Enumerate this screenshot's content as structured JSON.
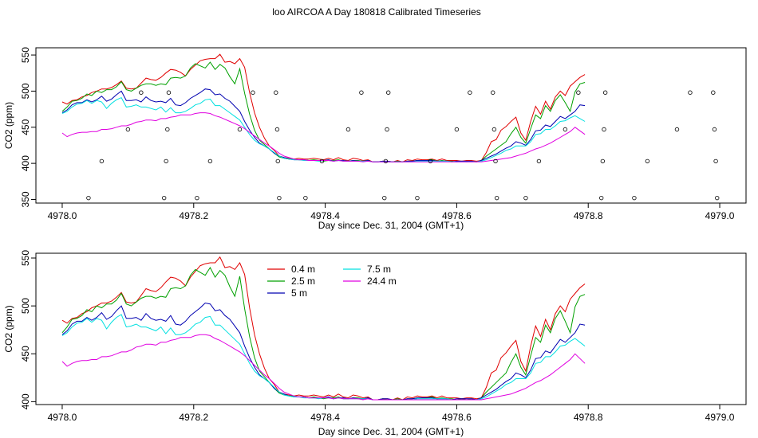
{
  "page_title": "loo AIRCOA A  Day 180818  Calibrated Timeseries",
  "chart_data": [
    {
      "type": "scatter",
      "xlabel": "Day since Dec. 31, 2004 (GMT+1)",
      "ylabel": "CO2 (ppm)",
      "xlim": [
        4977.96,
        4979.04
      ],
      "ylim": [
        345,
        560
      ],
      "xticks": [
        "4978.0",
        "4978.2",
        "4978.4",
        "4978.6",
        "4978.8",
        "4979.0"
      ],
      "yticks": [
        "350",
        "400",
        "450",
        "500",
        "550"
      ],
      "points": [
        [
          4978.04,
          352
        ],
        [
          4978.06,
          403
        ],
        [
          4978.1,
          447
        ],
        [
          4978.12,
          498
        ],
        [
          4978.155,
          352
        ],
        [
          4978.158,
          403
        ],
        [
          4978.16,
          447
        ],
        [
          4978.162,
          498
        ],
        [
          4978.205,
          352
        ],
        [
          4978.225,
          403
        ],
        [
          4978.27,
          447
        ],
        [
          4978.29,
          498
        ],
        [
          4978.325,
          498
        ],
        [
          4978.327,
          447
        ],
        [
          4978.328,
          403
        ],
        [
          4978.33,
          352
        ],
        [
          4978.37,
          352
        ],
        [
          4978.395,
          403
        ],
        [
          4978.435,
          447
        ],
        [
          4978.455,
          498
        ],
        [
          4978.49,
          352
        ],
        [
          4978.492,
          403
        ],
        [
          4978.494,
          447
        ],
        [
          4978.496,
          498
        ],
        [
          4978.54,
          352
        ],
        [
          4978.56,
          403
        ],
        [
          4978.6,
          447
        ],
        [
          4978.62,
          498
        ],
        [
          4978.655,
          498
        ],
        [
          4978.657,
          447
        ],
        [
          4978.659,
          403
        ],
        [
          4978.661,
          352
        ],
        [
          4978.705,
          352
        ],
        [
          4978.725,
          403
        ],
        [
          4978.765,
          447
        ],
        [
          4978.785,
          498
        ],
        [
          4978.82,
          352
        ],
        [
          4978.822,
          403
        ],
        [
          4978.824,
          447
        ],
        [
          4978.826,
          498
        ],
        [
          4978.87,
          352
        ],
        [
          4978.89,
          403
        ],
        [
          4978.935,
          447
        ],
        [
          4978.955,
          498
        ],
        [
          4978.99,
          498
        ],
        [
          4978.992,
          447
        ],
        [
          4978.994,
          403
        ],
        [
          4978.996,
          352
        ]
      ],
      "series": [
        {
          "name": "0.4 m",
          "color": "#e00000",
          "x_start": 4978.0,
          "x_step": 0.0075,
          "values": [
            485,
            482,
            487,
            488,
            492,
            494,
            498,
            500,
            503,
            503,
            505,
            509,
            514,
            504,
            503,
            504,
            511,
            518,
            516,
            515,
            519,
            525,
            530,
            529,
            526,
            521,
            530,
            536,
            542,
            544,
            545,
            545,
            551,
            540,
            541,
            538,
            545,
            533,
            498,
            470,
            450,
            435,
            424,
            418,
            410,
            408,
            407,
            406,
            407,
            406,
            406,
            407,
            406,
            405,
            407,
            405,
            408,
            405,
            404,
            407,
            406,
            404,
            405,
            402,
            402,
            403,
            403,
            402,
            404,
            402,
            405,
            404,
            406,
            405,
            405,
            406,
            404,
            406,
            404,
            404,
            404,
            403,
            404,
            404,
            403,
            404,
            415,
            430,
            433,
            446,
            451,
            458,
            464,
            442,
            432,
            458,
            479,
            468,
            486,
            475,
            492,
            500,
            494,
            507,
            513,
            519,
            523
          ]
        },
        {
          "name": "2.5 m",
          "color": "#00a000",
          "x_start": 4978.0,
          "x_step": 0.0075,
          "values": [
            472,
            478,
            486,
            487,
            490,
            496,
            494,
            500,
            498,
            502,
            502,
            506,
            513,
            502,
            500,
            504,
            508,
            510,
            510,
            508,
            510,
            509,
            518,
            519,
            518,
            521,
            532,
            538,
            535,
            532,
            540,
            530,
            537,
            532,
            520,
            510,
            531,
            497,
            468,
            446,
            432,
            426,
            420,
            414,
            409,
            407,
            406,
            406,
            405,
            405,
            404,
            405,
            404,
            403,
            404,
            404,
            405,
            403,
            403,
            404,
            404,
            403,
            404,
            402,
            402,
            403,
            402,
            402,
            403,
            402,
            403,
            403,
            404,
            404,
            404,
            405,
            403,
            404,
            403,
            403,
            402,
            403,
            402,
            403,
            402,
            404,
            410,
            415,
            420,
            425,
            430,
            441,
            450,
            436,
            428,
            448,
            467,
            462,
            480,
            472,
            487,
            495,
            484,
            472,
            499,
            510,
            512
          ]
        },
        {
          "name": "5 m",
          "color": "#0000b0",
          "x_start": 4978.0,
          "x_step": 0.0075,
          "values": [
            470,
            474,
            481,
            484,
            484,
            488,
            485,
            488,
            493,
            486,
            489,
            495,
            500,
            487,
            487,
            488,
            485,
            492,
            487,
            485,
            486,
            484,
            490,
            481,
            480,
            484,
            490,
            494,
            498,
            503,
            502,
            495,
            496,
            490,
            486,
            479,
            472,
            458,
            446,
            436,
            428,
            424,
            420,
            414,
            410,
            408,
            406,
            405,
            405,
            405,
            404,
            404,
            404,
            404,
            405,
            403,
            404,
            404,
            403,
            404,
            403,
            403,
            404,
            402,
            402,
            403,
            403,
            402,
            402,
            402,
            403,
            403,
            404,
            404,
            404,
            404,
            403,
            403,
            403,
            402,
            403,
            403,
            403,
            403,
            402,
            404,
            407,
            410,
            413,
            417,
            421,
            424,
            430,
            428,
            425,
            433,
            445,
            446,
            453,
            451,
            458,
            465,
            462,
            467,
            472,
            481,
            480
          ]
        },
        {
          "name": "7.5 m",
          "color": "#00e0e0",
          "x_start": 4978.0,
          "x_step": 0.0075,
          "values": [
            469,
            472,
            478,
            482,
            483,
            487,
            483,
            487,
            485,
            476,
            483,
            488,
            491,
            478,
            479,
            481,
            478,
            478,
            476,
            474,
            478,
            471,
            477,
            470,
            470,
            472,
            476,
            481,
            483,
            488,
            489,
            480,
            480,
            475,
            470,
            465,
            460,
            450,
            440,
            432,
            427,
            424,
            420,
            415,
            410,
            407,
            406,
            405,
            405,
            404,
            404,
            404,
            403,
            404,
            404,
            403,
            404,
            403,
            403,
            403,
            403,
            403,
            403,
            402,
            402,
            402,
            402,
            402,
            402,
            402,
            402,
            402,
            403,
            403,
            403,
            403,
            403,
            403,
            403,
            402,
            402,
            402,
            402,
            402,
            402,
            403,
            405,
            408,
            411,
            414,
            418,
            420,
            424,
            424,
            424,
            430,
            440,
            441,
            447,
            447,
            452,
            458,
            459,
            463,
            466,
            462,
            458
          ]
        },
        {
          "name": "24.4 m",
          "color": "#e000e0",
          "x_start": 4978.0,
          "x_step": 0.0075,
          "values": [
            442,
            437,
            440,
            442,
            443,
            443,
            444,
            444,
            447,
            447,
            448,
            450,
            452,
            452,
            454,
            457,
            458,
            460,
            460,
            459,
            462,
            462,
            464,
            465,
            467,
            467,
            467,
            469,
            470,
            470,
            469,
            466,
            464,
            461,
            458,
            455,
            452,
            448,
            443,
            438,
            433,
            428,
            424,
            419,
            414,
            410,
            408,
            406,
            405,
            405,
            404,
            404,
            404,
            404,
            404,
            403,
            404,
            403,
            403,
            403,
            403,
            402,
            403,
            402,
            402,
            402,
            402,
            402,
            402,
            402,
            402,
            402,
            402,
            402,
            402,
            402,
            402,
            402,
            402,
            402,
            402,
            402,
            402,
            402,
            402,
            402,
            403,
            404,
            405,
            406,
            407,
            408,
            410,
            412,
            414,
            417,
            420,
            422,
            425,
            428,
            432,
            436,
            440,
            444,
            450,
            445,
            440
          ]
        }
      ]
    },
    {
      "type": "line",
      "xlabel": "Day since Dec. 31, 2004 (GMT+1)",
      "ylabel": "CO2 (ppm)",
      "xlim": [
        4977.96,
        4979.04
      ],
      "ylim": [
        397,
        555
      ],
      "xticks": [
        "4978.0",
        "4978.2",
        "4978.4",
        "4978.6",
        "4978.8",
        "4979.0"
      ],
      "yticks": [
        "400",
        "450",
        "500",
        "550"
      ],
      "legend": "top-left-center",
      "legend_entries": [
        "0.4 m",
        "2.5 m",
        "5 m",
        "7.5 m",
        "24.4 m"
      ],
      "series_ref": "same as chart 1"
    }
  ]
}
